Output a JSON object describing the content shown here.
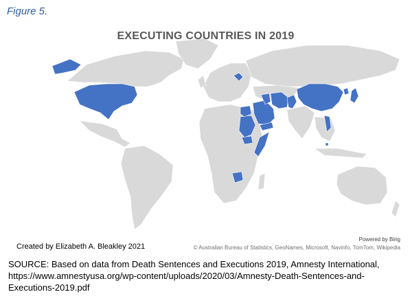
{
  "figure_label": "Figure 5.",
  "map": {
    "title": "EXECUTING COUNTRIES IN 2019",
    "powered_by": "Powered by Bing",
    "attribution": "© Australian Bureau of Statistics, GeoNames, Microsoft, Navinfo, TomTom, Wikipedia",
    "credit": "Created by Elizabeth A. Bleakley 2021",
    "colors": {
      "land": "#d9d9d9",
      "highlight": "#4472c4",
      "title": "#595959"
    },
    "highlighted_countries": [
      "United States",
      "Belarus",
      "Egypt",
      "Sudan",
      "South Sudan",
      "Somalia",
      "Saudi Arabia",
      "Yemen",
      "Iraq",
      "Iran",
      "Bahrain",
      "Singapore",
      "Pakistan",
      "China",
      "North Korea",
      "Japan",
      "Vietnam",
      "Botswana"
    ]
  },
  "source": {
    "line1": "SOURCE: Based on data from Death Sentences and Executions 2019, Amnesty International,",
    "line2": "https://www.amnestyusa.org/wp-content/uploads/2020/03/Amnesty-Death-Sentences-and-",
    "line3": "Executions-2019.pdf"
  }
}
